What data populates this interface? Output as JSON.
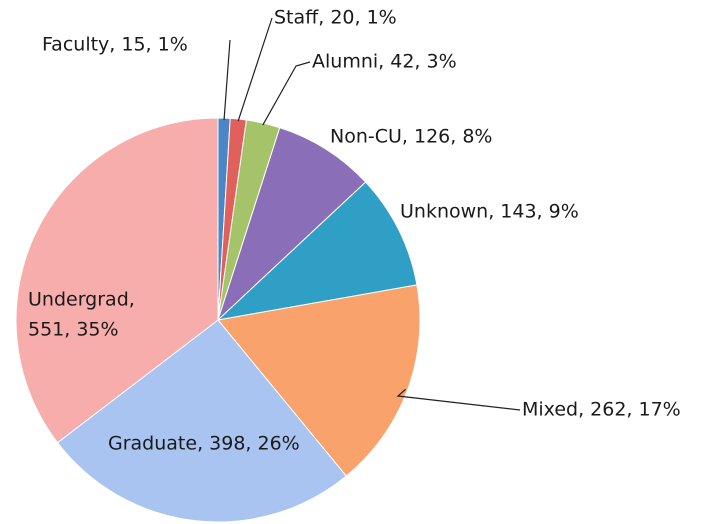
{
  "chart_data": {
    "type": "pie",
    "values": [
      15,
      20,
      42,
      126,
      143,
      262,
      398,
      551
    ],
    "value_labels": [
      [
        "Faculty, 15, 1%"
      ],
      [
        "Staff, 20, 1%"
      ],
      [
        "Alumni, 42, 3%"
      ],
      [
        "Non-CU, 126, 8%"
      ],
      [
        "Unknown, 143, 9%"
      ],
      [
        "Mixed, 262, 17%"
      ],
      [
        "Graduate, 398, 26%"
      ],
      [
        "Undergrad,",
        "551, 35%"
      ]
    ],
    "colors": [
      "#4a86c8",
      "#e0605c",
      "#a5c46a",
      "#8a6fb8",
      "#2f9fc6",
      "#f9a26c",
      "#a9c4f0",
      "#f6adab"
    ]
  }
}
